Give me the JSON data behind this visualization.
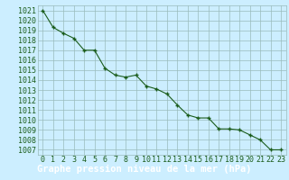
{
  "x": [
    0,
    1,
    2,
    3,
    4,
    5,
    6,
    7,
    8,
    9,
    10,
    11,
    12,
    13,
    14,
    15,
    16,
    17,
    18,
    19,
    20,
    21,
    22,
    23
  ],
  "y": [
    1021.0,
    1019.3,
    1018.7,
    1018.2,
    1017.0,
    1017.0,
    1015.2,
    1014.5,
    1014.3,
    1014.5,
    1013.4,
    1013.1,
    1012.6,
    1011.5,
    1010.5,
    1010.2,
    1010.2,
    1009.1,
    1009.1,
    1009.0,
    1008.5,
    1008.0,
    1007.0,
    1007.0
  ],
  "line_color": "#1a5c1a",
  "marker": "+",
  "marker_size": 3,
  "bg_color": "#cceeff",
  "grid_color": "#99bbbb",
  "xlabel": "Graphe pression niveau de la mer (hPa)",
  "xlabel_bg": "#1a6e1a",
  "xlabel_fontsize": 7.5,
  "ylabel_ticks": [
    1007,
    1008,
    1009,
    1010,
    1011,
    1012,
    1013,
    1014,
    1015,
    1016,
    1017,
    1018,
    1019,
    1020,
    1021
  ],
  "xlim": [
    -0.5,
    23.5
  ],
  "ylim": [
    1006.5,
    1021.5
  ],
  "tick_fontsize": 6,
  "tick_color": "#1a5c1a"
}
